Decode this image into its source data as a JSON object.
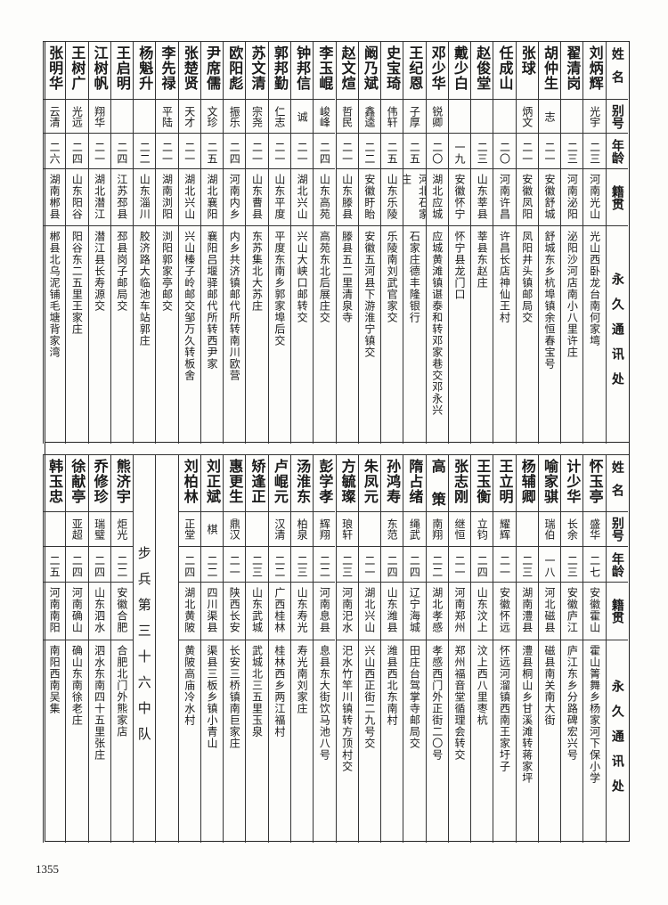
{
  "headers": {
    "name": "姓名",
    "alias": "别号",
    "age": "年龄",
    "origin": "籍贯",
    "address": "永久通讯处"
  },
  "top_table": {
    "rows": [
      [
        "刘炳辉",
        "光宇",
        "二三",
        "河南光山",
        "光山西卧龙台南何家塆"
      ],
      [
        "翟清岗",
        "",
        "二三",
        "河南泌阳",
        "泌阳沙河店南小八里许庄"
      ],
      [
        "胡仲生",
        "志",
        "二一",
        "安徽舒城",
        "舒城东乡杭埠镇余恒春宝号"
      ],
      [
        "张球",
        "炳文",
        "二一",
        "安徽凤阳",
        "凤阳井头镇邮局交"
      ],
      [
        "任成山",
        "",
        "二〇",
        "河南许昌",
        "许昌长店神仙王村"
      ],
      [
        "赵俊堂",
        "",
        "二三",
        "山东莘县",
        "莘县东赵庄"
      ],
      [
        "戴少白",
        "",
        "一九",
        "安徽怀宁",
        "怀宁县龙门口"
      ],
      [
        "邓少华",
        "锐卿",
        "二〇",
        "湖北应城",
        "应城黄滩镇谌泰和转邓家巷交邓永兴"
      ],
      [
        "王纪恩",
        "子厚",
        "二五",
        "河北石家庄",
        "石家庄德丰隆银行"
      ],
      [
        "史宝琦",
        "伟轩",
        "二五",
        "山东乐陵",
        "乐陵南刘武官家交"
      ],
      [
        "阚乃斌",
        "鑫逵",
        "二二",
        "安徽盱眙",
        "安徽五河县下游淮宁镇交"
      ],
      [
        "赵文煊",
        "哲民",
        "二一",
        "山东滕县",
        "滕县五二里清泉寺"
      ],
      [
        "李玉崐",
        "峻峰",
        "二四",
        "山东高苑",
        "高苑东北后展庄交"
      ],
      [
        "钟邦信",
        "诚",
        "二一",
        "湖北兴山",
        "兴山大峡口邮转交"
      ],
      [
        "郭邦勤",
        "仁志",
        "二一",
        "山东平度",
        "平度东南乡郭家埠后交"
      ],
      [
        "苏文清",
        "宗尧",
        "二一",
        "山东曹县",
        "东苏集北大苏庄"
      ],
      [
        "欧阳彪",
        "振乐",
        "二四",
        "河南内乡",
        "内乡共济镇邮代所转南川欧营"
      ],
      [
        "尹席儒",
        "文珍",
        "二五",
        "湖北襄阳",
        "襄阳吕堰驿邮代所转西尹家"
      ],
      [
        "张楚贤",
        "天才",
        "二一",
        "湖北兴山",
        "兴山榛子岭邮交邹万久转板舍"
      ],
      [
        "李先禄",
        "平陆",
        "二一",
        "湖南浏阳",
        "浏阳郭家亭邮交"
      ],
      [
        "杨魁升",
        "",
        "二二",
        "山东淄川",
        "胶济路大临池车站郭庄"
      ],
      [
        "王启明",
        "",
        "二四",
        "江苏邳县",
        "邳县岗子邮局交"
      ],
      [
        "江树帆",
        "翔华",
        "二一",
        "湖北潜江",
        "潜江县长寿源交"
      ],
      [
        "王树广",
        "光远",
        "二四",
        "山东阳谷",
        "阳谷东二五里王家庄"
      ],
      [
        "张明华",
        "云清",
        "二六",
        "湖南郴县",
        "郴县北乌泥铺毛塘背家湾"
      ]
    ]
  },
  "bottom_table": {
    "rows_a": [
      [
        "怀玉亭",
        "盛华",
        "二七",
        "安徽霍山",
        "霍山箐舞乡杨家河下保小学"
      ],
      [
        "计少华",
        "长余",
        "二三",
        "安徽庐江",
        "庐江东乡分路碑宏兴号"
      ],
      [
        "喻家骐",
        "瑞伯",
        "一八",
        "河北磁县",
        "磁县南关南大街"
      ],
      [
        "杨辅卿",
        "",
        "二三",
        "湖南澧县",
        "澧县桐山乡甘溪滩转蒋家坪"
      ],
      [
        "王立明",
        "耀辉",
        "二一",
        "安徽怀远",
        "怀远河溜镇西南王家圩子"
      ],
      [
        "王玉衡",
        "立钧",
        "二四",
        "山东汶上",
        "汶上西八里枣杭"
      ],
      [
        "张志刚",
        "继恒",
        "二一",
        "河南郑州",
        "郑州福音堂循理会转交"
      ],
      [
        "高 策",
        "南翔",
        "二二",
        "湖北孝感",
        "孝感西门外正街二〇号"
      ],
      [
        "隋占绪",
        "绳武",
        "二四",
        "辽宁海城",
        "田庄台驾掌寺邮局交"
      ],
      [
        "孙鸿寿",
        "东范",
        "二四",
        "山东潍县",
        "潍县西北东南村"
      ],
      [
        "朱凤元",
        "",
        "二一",
        "湖北兴山",
        "兴山西正街二九号交"
      ],
      [
        "方毓璨",
        "琅轩",
        "二三",
        "河南汜水",
        "汜水竹竿川镇转方顶村交"
      ],
      [
        "彭学孝",
        "辉翔",
        "二二",
        "河南息县",
        "息县东大街饮马池八号"
      ],
      [
        "汤淮东",
        "柏泉",
        "二三",
        "山东寿光",
        "寿光南刘家庄"
      ],
      [
        "卢崐元",
        "汉清",
        "二二",
        "广西桂林",
        "桂林西乡两江福村"
      ],
      [
        "矫逢正",
        "",
        "二三",
        "山东武城",
        "武城北三五里玉泉"
      ],
      [
        "惠更生",
        "鼎汉",
        "二一",
        "陕西长安",
        "长安三桥镇南巨家庄"
      ],
      [
        "刘正斌",
        "棋",
        "二二",
        "四川渠县",
        "渠县三板乡镇小青山"
      ],
      [
        "刘柏林",
        "正堂",
        "二四",
        "湖北黄陂",
        "黄陂高庙冷水村"
      ]
    ],
    "section_label": "步兵第三十六中队",
    "rows_b": [
      [
        "熊济宇",
        "炬光",
        "二二",
        "安徽合肥",
        "合肥北门外熊家店"
      ],
      [
        "乔修珍",
        "瑞璧",
        "二四",
        "山东泗水",
        "泗水东南四十五里张庄"
      ],
      [
        "徐献亭",
        "亚超",
        "二四",
        "河南确山",
        "确山东南徐老庄"
      ],
      [
        "韩玉忠",
        "",
        "二五",
        "河南南阳",
        "南阳西南吴集"
      ]
    ]
  },
  "page_number": "1355"
}
